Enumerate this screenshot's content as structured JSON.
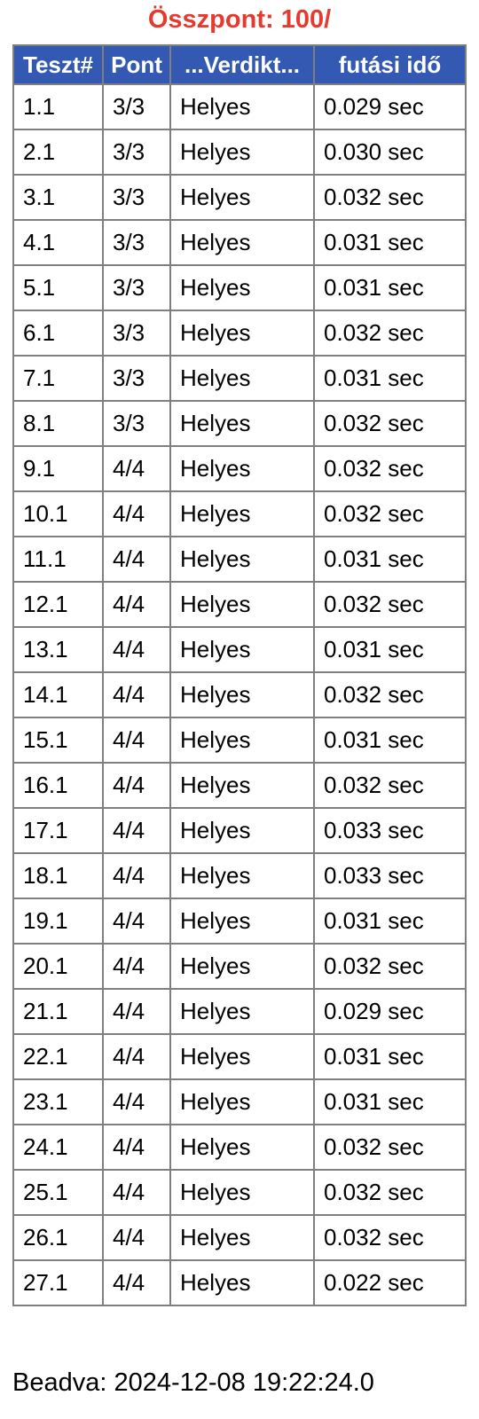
{
  "score": {
    "label": "Összpont: 100/"
  },
  "colors": {
    "score_text": "#e53a2e",
    "header_bg": "#3459b2",
    "header_text": "#ffffff",
    "grid_border": "#7f7f7f"
  },
  "table": {
    "headers": [
      "Teszt#",
      "Pont",
      "...Verdikt...",
      "futási idő"
    ],
    "rows": [
      [
        "1.1",
        "3/3",
        "Helyes",
        "0.029 sec"
      ],
      [
        "2.1",
        "3/3",
        "Helyes",
        "0.030 sec"
      ],
      [
        "3.1",
        "3/3",
        "Helyes",
        "0.032 sec"
      ],
      [
        "4.1",
        "3/3",
        "Helyes",
        "0.031 sec"
      ],
      [
        "5.1",
        "3/3",
        "Helyes",
        "0.031 sec"
      ],
      [
        "6.1",
        "3/3",
        "Helyes",
        "0.032 sec"
      ],
      [
        "7.1",
        "3/3",
        "Helyes",
        "0.031 sec"
      ],
      [
        "8.1",
        "3/3",
        "Helyes",
        "0.032 sec"
      ],
      [
        "9.1",
        "4/4",
        "Helyes",
        "0.032 sec"
      ],
      [
        "10.1",
        "4/4",
        "Helyes",
        "0.032 sec"
      ],
      [
        "11.1",
        "4/4",
        "Helyes",
        "0.031 sec"
      ],
      [
        "12.1",
        "4/4",
        "Helyes",
        "0.032 sec"
      ],
      [
        "13.1",
        "4/4",
        "Helyes",
        "0.031 sec"
      ],
      [
        "14.1",
        "4/4",
        "Helyes",
        "0.032 sec"
      ],
      [
        "15.1",
        "4/4",
        "Helyes",
        "0.031 sec"
      ],
      [
        "16.1",
        "4/4",
        "Helyes",
        "0.032 sec"
      ],
      [
        "17.1",
        "4/4",
        "Helyes",
        "0.033 sec"
      ],
      [
        "18.1",
        "4/4",
        "Helyes",
        "0.033 sec"
      ],
      [
        "19.1",
        "4/4",
        "Helyes",
        "0.031 sec"
      ],
      [
        "20.1",
        "4/4",
        "Helyes",
        "0.032 sec"
      ],
      [
        "21.1",
        "4/4",
        "Helyes",
        "0.029 sec"
      ],
      [
        "22.1",
        "4/4",
        "Helyes",
        "0.031 sec"
      ],
      [
        "23.1",
        "4/4",
        "Helyes",
        "0.031 sec"
      ],
      [
        "24.1",
        "4/4",
        "Helyes",
        "0.032 sec"
      ],
      [
        "25.1",
        "4/4",
        "Helyes",
        "0.032 sec"
      ],
      [
        "26.1",
        "4/4",
        "Helyes",
        "0.032 sec"
      ],
      [
        "27.1",
        "4/4",
        "Helyes",
        "0.022 sec"
      ]
    ]
  },
  "submission": {
    "label": "Beadva: 2024-12-08 19:22:24.0"
  }
}
